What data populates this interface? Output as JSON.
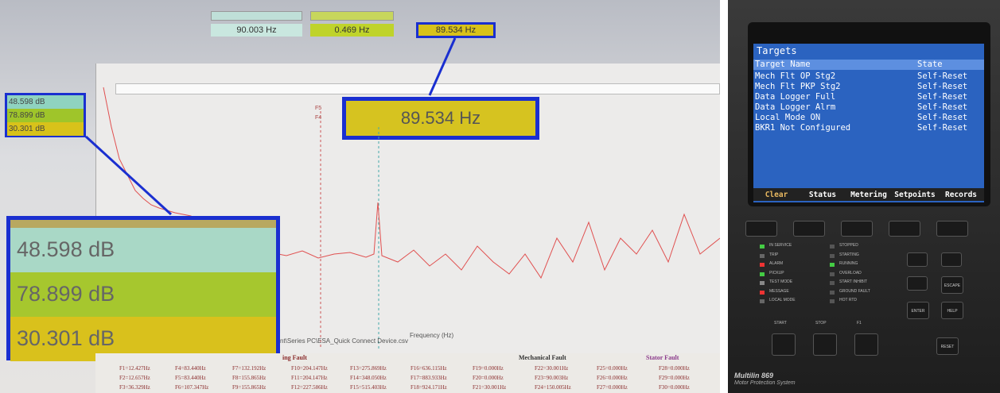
{
  "left": {
    "readouts": [
      "90.003 Hz",
      "0.469 Hz",
      "89.534 Hz"
    ],
    "zoom_readout": "89.534 Hz",
    "db_values": [
      "48.598 dB",
      "78.899 dB",
      "30.301 dB"
    ],
    "cursor_labels": [
      "F5",
      "F4"
    ],
    "x_axis_label": "Frequency (Hz)",
    "file_path": "nt\\Series PC\\ESA_Quick Connect Device.csv",
    "sections": [
      "ing Fault",
      "Mechanical Fault",
      "Stator Fault"
    ],
    "frequencies": [
      "F1=12.427Hz",
      "F2=12.657Hz",
      "F3=36.329Hz",
      "F4=83.440Hz",
      "F5=83.440Hz",
      "F6=107.347Hz",
      "F7=132.192Hz",
      "F8=155.865Hz",
      "F9=155.865Hz",
      "F10=204.147Hz",
      "F11=204.147Hz",
      "F12=227.586Hz",
      "F13=275.869Hz",
      "F14=348.050Hz",
      "F15=515.403Hz",
      "F16=636.115Hz",
      "F17=883.933Hz",
      "F18=924.171Hz",
      "F19=0.000Hz",
      "F20=0.000Hz",
      "F21=30.001Hz",
      "F22=30.001Hz",
      "F23=90.003Hz",
      "F24=150.005Hz",
      "F25=0.000Hz",
      "F26=0.000Hz",
      "F27=0.000Hz",
      "F28=0.000Hz",
      "F29=0.000Hz",
      "F30=0.000Hz"
    ]
  },
  "right": {
    "screen_title": "Targets",
    "columns": [
      "Target Name",
      "State"
    ],
    "rows": [
      [
        "Mech Flt OP Stg2",
        "Self-Reset"
      ],
      [
        "Mech Flt PKP Stg2",
        "Self-Reset"
      ],
      [
        "Data Logger Full",
        "Self-Reset"
      ],
      [
        "Data Logger Alrm",
        "Self-Reset"
      ],
      [
        "Local Mode ON",
        "Self-Reset"
      ],
      [
        "BKR1 Not Configured",
        "Self-Reset"
      ]
    ],
    "softkeys": [
      "Clear",
      "Status",
      "Metering",
      "Setpoints",
      "Records"
    ],
    "leds_left": [
      "IN SERVICE",
      "TRIP",
      "ALARM",
      "PICKUP",
      "TEST MODE",
      "MESSAGE",
      "LOCAL MODE"
    ],
    "leds_right": [
      "STOPPED",
      "STARTING",
      "RUNNING",
      "OVERLOAD",
      "START INHIBIT",
      "GROUND FAULT",
      "HOT RTD"
    ],
    "keys": [
      "ENTER",
      "HELP",
      "ESCAPE",
      "RESET"
    ],
    "control_keys": [
      "START",
      "STOP",
      "F1"
    ],
    "brand": "Multilin 869",
    "product": "Motor Protection System"
  }
}
